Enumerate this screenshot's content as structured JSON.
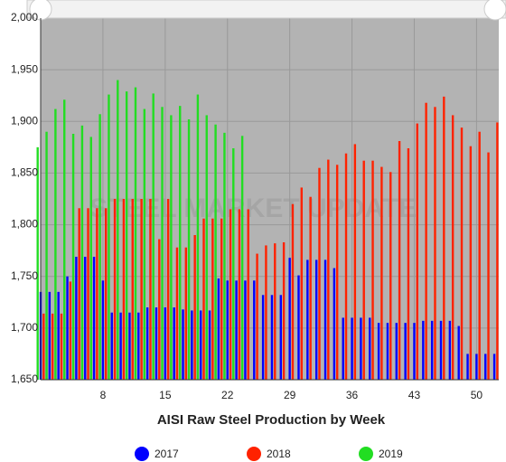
{
  "chart_data": {
    "type": "bar",
    "title": "AISI Raw Steel Production by Week",
    "watermark": "STEEL MARKET UPDATE",
    "x": [
      1,
      2,
      3,
      4,
      5,
      6,
      7,
      8,
      9,
      10,
      11,
      12,
      13,
      14,
      15,
      16,
      17,
      18,
      19,
      20,
      21,
      22,
      23,
      24,
      25,
      26,
      27,
      28,
      29,
      30,
      31,
      32,
      33,
      34,
      35,
      36,
      37,
      38,
      39,
      40,
      41,
      42,
      43,
      44,
      45,
      46,
      47,
      48,
      49,
      50,
      51,
      52
    ],
    "xlim": [
      1,
      52.5
    ],
    "xticks": [
      8,
      15,
      22,
      29,
      36,
      43,
      50
    ],
    "ylim": [
      1650,
      2000
    ],
    "yticks": [
      {
        "value": 1650,
        "label": "1,650"
      },
      {
        "value": 1700,
        "label": "1,700"
      },
      {
        "value": 1750,
        "label": "1,750"
      },
      {
        "value": 1800,
        "label": "1,800"
      },
      {
        "value": 1850,
        "label": "1,850"
      },
      {
        "value": 1900,
        "label": "1,900"
      },
      {
        "value": 1950,
        "label": "1,950"
      },
      {
        "value": 2000,
        "label": "2,000"
      }
    ],
    "grid": true,
    "legend": "bottom",
    "series": [
      {
        "name": "2017",
        "color": "#0000ff",
        "values": [
          1735,
          1735,
          1735,
          1750,
          1769,
          1769,
          1769,
          1746,
          1715,
          1715,
          1715,
          1715,
          1720,
          1720,
          1720,
          1720,
          1718,
          1717,
          1717,
          1717,
          1748,
          1746,
          1746,
          1746,
          1746,
          1732,
          1732,
          1732,
          1768,
          1751,
          1766,
          1766,
          1766,
          1758,
          1710,
          1710,
          1710,
          1710,
          1705,
          1705,
          1705,
          1705,
          1705,
          1707,
          1707,
          1707,
          1707,
          1702,
          1675,
          1675,
          1675,
          1675
        ]
      },
      {
        "name": "2018",
        "color": "#ff2200",
        "values": [
          1714,
          1714,
          1714,
          1745,
          1816,
          1816,
          1816,
          1816,
          1825,
          1825,
          1825,
          1825,
          1825,
          1786,
          1825,
          1778,
          1778,
          1790,
          1806,
          1806,
          1806,
          1815,
          1815,
          1815,
          1772,
          1780,
          1782,
          1783,
          1820,
          1836,
          1827,
          1855,
          1863,
          1858,
          1869,
          1878,
          1862,
          1862,
          1856,
          1851,
          1881,
          1874,
          1898,
          1918,
          1914,
          1924,
          1906,
          1894,
          1876,
          1890,
          1870,
          1899
        ]
      },
      {
        "name": "2019",
        "color": "#22dd22",
        "values": [
          1875,
          1890,
          1912,
          1921,
          1888,
          1896,
          1885,
          1907,
          1926,
          1940,
          1929,
          1933,
          1912,
          1927,
          1914,
          1906,
          1915,
          1902,
          1926,
          1906,
          1897,
          1889,
          1874,
          1886,
          null,
          null,
          null,
          null,
          null,
          null,
          null,
          null,
          null,
          null,
          null,
          null,
          null,
          null,
          null,
          null,
          null,
          null,
          null,
          null,
          null,
          null,
          null,
          null,
          null,
          null,
          null,
          null
        ]
      }
    ]
  }
}
